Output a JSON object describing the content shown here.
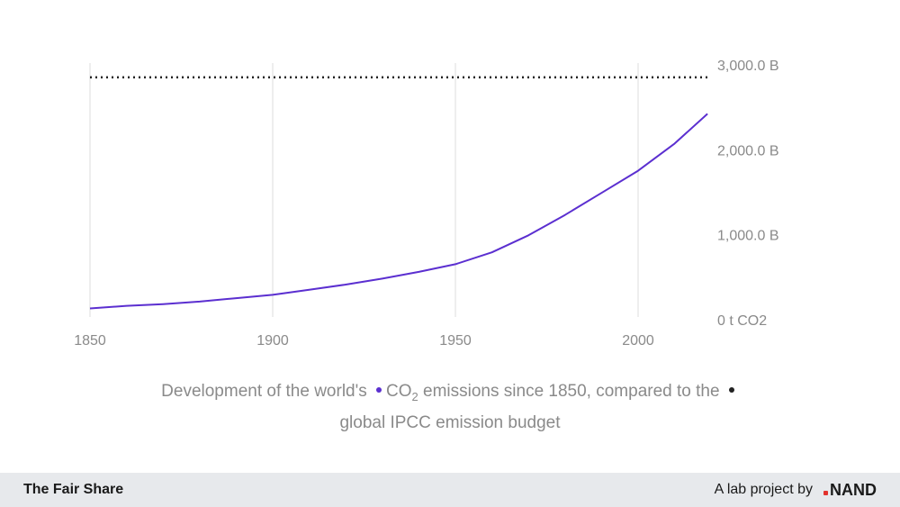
{
  "chart_data": {
    "type": "line",
    "x": [
      1850,
      1860,
      1870,
      1880,
      1890,
      1900,
      1910,
      1920,
      1930,
      1940,
      1950,
      1960,
      1970,
      1980,
      1990,
      2000,
      2010,
      2019
    ],
    "series": [
      {
        "values": [
          0.08,
          0.11,
          0.13,
          0.16,
          0.2,
          0.24,
          0.3,
          0.36,
          0.43,
          0.51,
          0.6,
          0.74,
          0.94,
          1.18,
          1.44,
          1.7,
          2.02,
          2.37
        ],
        "color": "#5b2fd0"
      },
      {
        "values": [
          2.8,
          2.8
        ],
        "x": [
          1850,
          2019
        ],
        "color": "#222222",
        "style": "dotted"
      }
    ],
    "x_ticks": [
      "1850",
      "1900",
      "1950",
      "2000"
    ],
    "y_ticks": [
      "0 t CO2",
      "1,000.0 B",
      "2,000.0 B",
      "3,000.0 B"
    ],
    "ylim": [
      0,
      3
    ],
    "y_axis_position": "right",
    "grid": "vertical",
    "caption": {
      "part1": "Development of the world's",
      "co2_base": "CO",
      "co2_sub": "2",
      "part2": "emissions since 1850, compared to the",
      "part3": "global IPCC emission budget"
    }
  },
  "footer": {
    "brand": "The Fair Share",
    "credit": "A lab project by",
    "logo_text": "NAND",
    "logo_dot_color": "#e2322e"
  }
}
